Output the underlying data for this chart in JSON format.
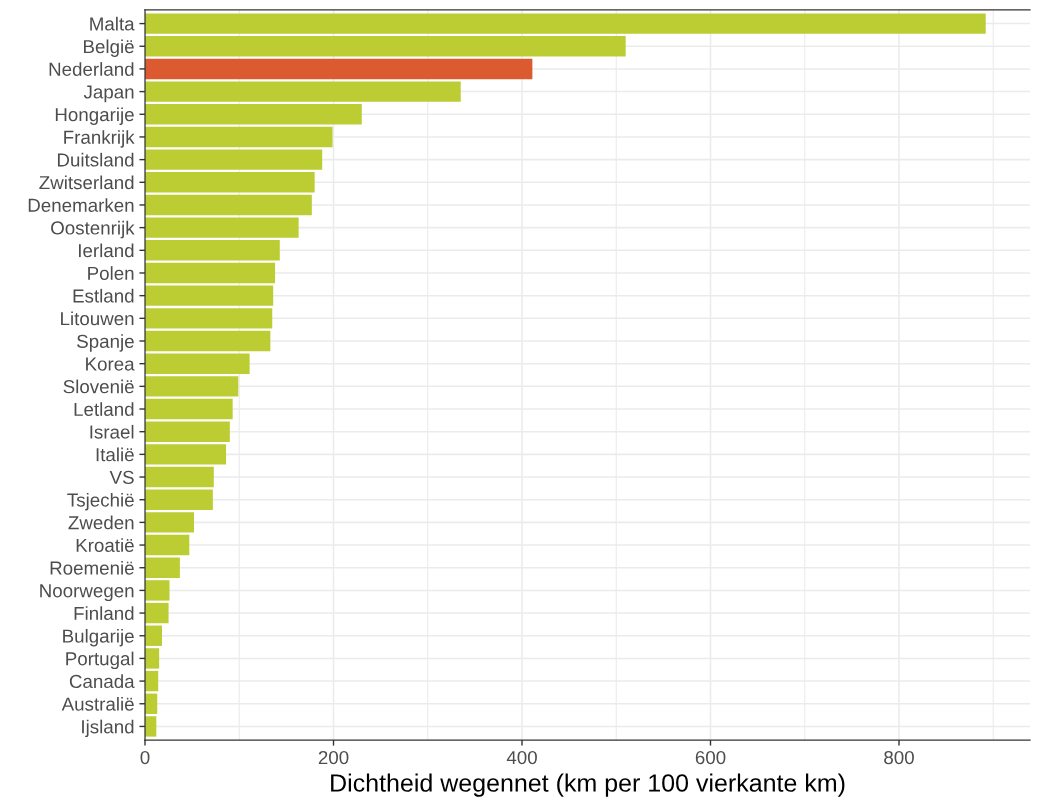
{
  "chart_data": {
    "type": "bar",
    "orientation": "horizontal",
    "xlabel": "Dichtheid wegennet (km per 100 vierkante km)",
    "categories": [
      "Malta",
      "België",
      "Nederland",
      "Japan",
      "Hongarije",
      "Frankrijk",
      "Duitsland",
      "Zwitserland",
      "Denemarken",
      "Oostenrijk",
      "Ierland",
      "Polen",
      "Estland",
      "Litouwen",
      "Spanje",
      "Korea",
      "Slovenië",
      "Letland",
      "Israel",
      "Italië",
      "VS",
      "Tsjechië",
      "Zweden",
      "Kroatië",
      "Roemenië",
      "Noorwegen",
      "Finland",
      "Bulgarije",
      "Portugal",
      "Canada",
      "Australië",
      "Ijsland"
    ],
    "values": [
      892,
      510,
      411,
      335,
      230,
      199,
      188,
      180,
      177,
      163,
      143,
      138,
      136,
      135,
      133,
      111,
      99,
      93,
      90,
      86,
      73,
      72,
      52,
      47,
      37,
      26,
      25,
      18,
      15,
      14,
      13,
      12
    ],
    "colors": [
      "#bccd34",
      "#bccd34",
      "#dc5a2f",
      "#bccd34",
      "#bccd34",
      "#bccd34",
      "#bccd34",
      "#bccd34",
      "#bccd34",
      "#bccd34",
      "#bccd34",
      "#bccd34",
      "#bccd34",
      "#bccd34",
      "#bccd34",
      "#bccd34",
      "#bccd34",
      "#bccd34",
      "#bccd34",
      "#bccd34",
      "#bccd34",
      "#bccd34",
      "#bccd34",
      "#bccd34",
      "#bccd34",
      "#bccd34",
      "#bccd34",
      "#bccd34",
      "#bccd34",
      "#bccd34",
      "#bccd34",
      "#bccd34"
    ],
    "xlim": [
      0,
      939
    ],
    "xticks": [
      0,
      200,
      400,
      600,
      800
    ],
    "grid": true,
    "legend": false
  }
}
